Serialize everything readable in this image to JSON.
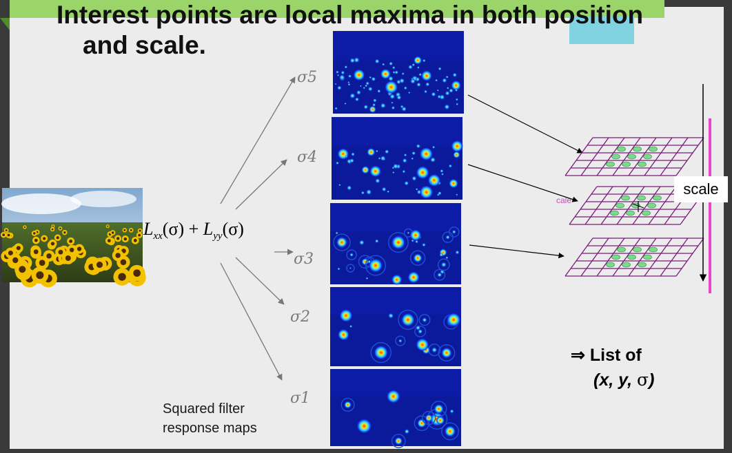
{
  "title": {
    "line1": "Interest points are local maxima in both position",
    "line2": "and scale."
  },
  "formula": {
    "part1": "L",
    "sub1": "xx",
    "part2": "(σ) + ",
    "part3": "L",
    "sub2": "yy",
    "part4": "(σ)"
  },
  "sigmas": [
    "σ5",
    "σ4",
    "σ3",
    "σ2",
    "σ1"
  ],
  "caption": {
    "line1": "Squared filter",
    "line2": "response maps"
  },
  "scale_label": "scale",
  "faded_label": "cale",
  "list": {
    "line1": "⇒ List of",
    "line2a": "(x, y, ",
    "line2b": "σ",
    "line2c": ")"
  },
  "colors": {
    "accent_green": "#9bd56a",
    "accent_cyan": "#82d3e1",
    "grid_purple": "#7a1a7a",
    "dot_green": "#77dd88",
    "scale_bar": "#ee44cc",
    "map_bg": "#0a1a9a"
  }
}
